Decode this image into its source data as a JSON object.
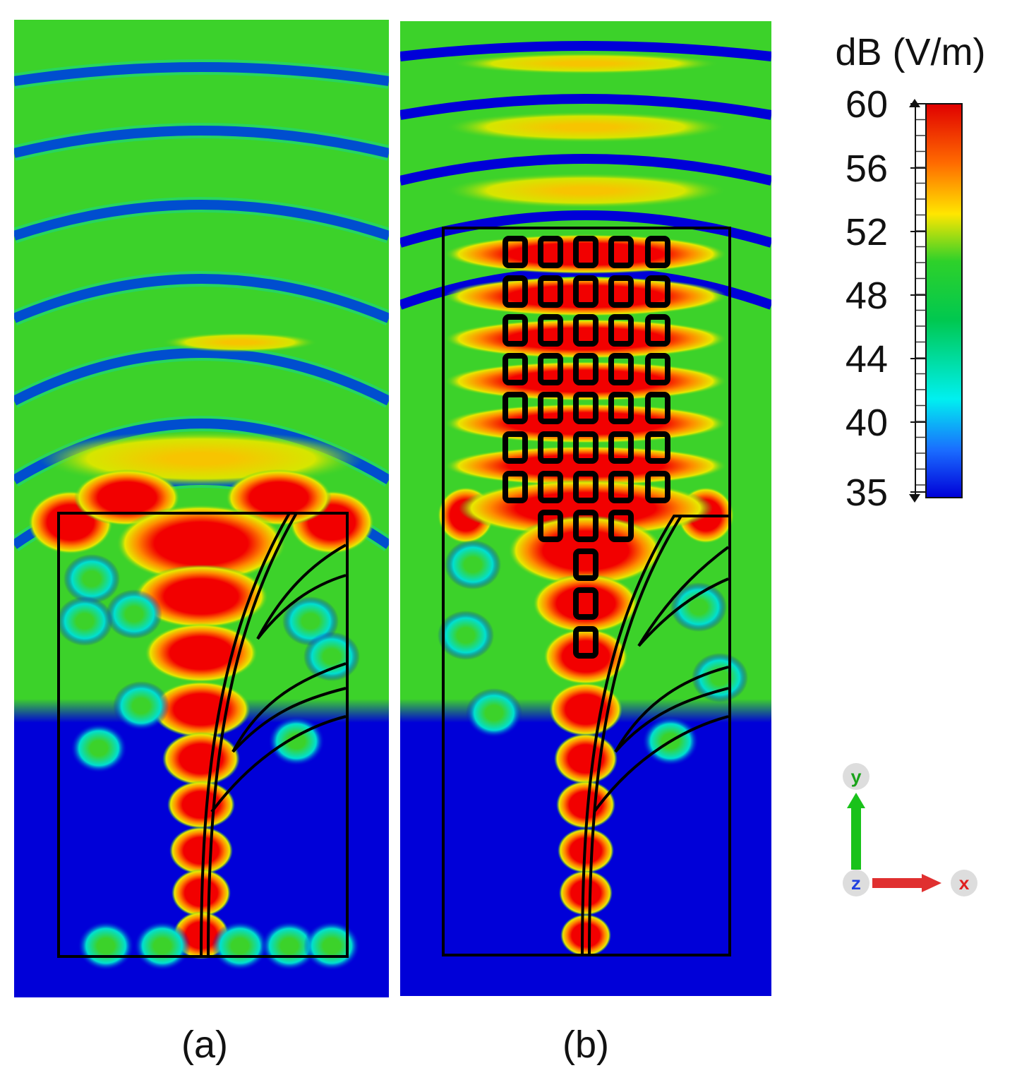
{
  "colorbar": {
    "title": "dB (V/m)",
    "ticks": [
      60,
      56,
      52,
      48,
      44,
      40,
      35
    ]
  },
  "panels": [
    {
      "label": "(a)"
    },
    {
      "label": "(b)"
    }
  ],
  "axes": {
    "y": "y",
    "z": "z",
    "x": "x"
  }
}
